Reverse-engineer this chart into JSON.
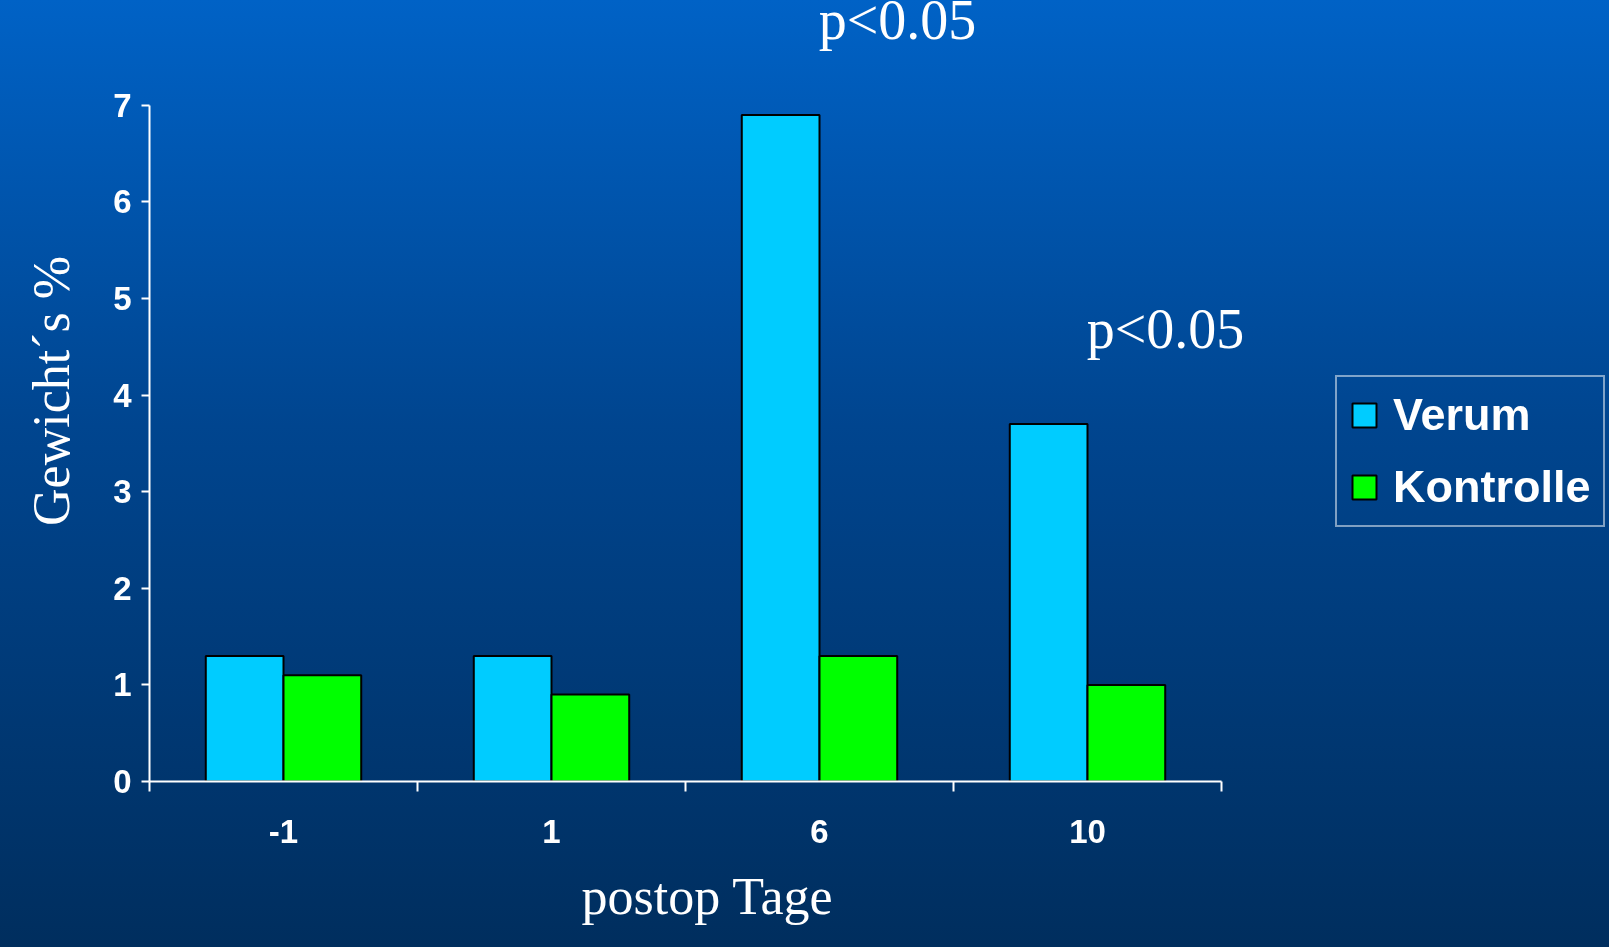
{
  "chart_data": {
    "type": "bar",
    "xlabel": "postop Tage",
    "ylabel": "Gewicht´s %",
    "categories": [
      "-1",
      "1",
      "6",
      "10"
    ],
    "series": [
      {
        "name": "Verum",
        "color": "#00ccff",
        "values": [
          1.3,
          1.3,
          6.9,
          3.7
        ]
      },
      {
        "name": "Kontrolle",
        "color": "#00ff00",
        "values": [
          1.1,
          0.9,
          1.3,
          1.0
        ]
      }
    ],
    "ylim": [
      0,
      7
    ],
    "yticks": [
      0,
      1,
      2,
      3,
      4,
      5,
      6,
      7
    ],
    "legend": "right",
    "annotations": [
      {
        "text": "p<0.05",
        "x": "6",
        "y": 6.9
      },
      {
        "text": "p<0.05",
        "x": "10",
        "y": 3.7
      }
    ]
  }
}
